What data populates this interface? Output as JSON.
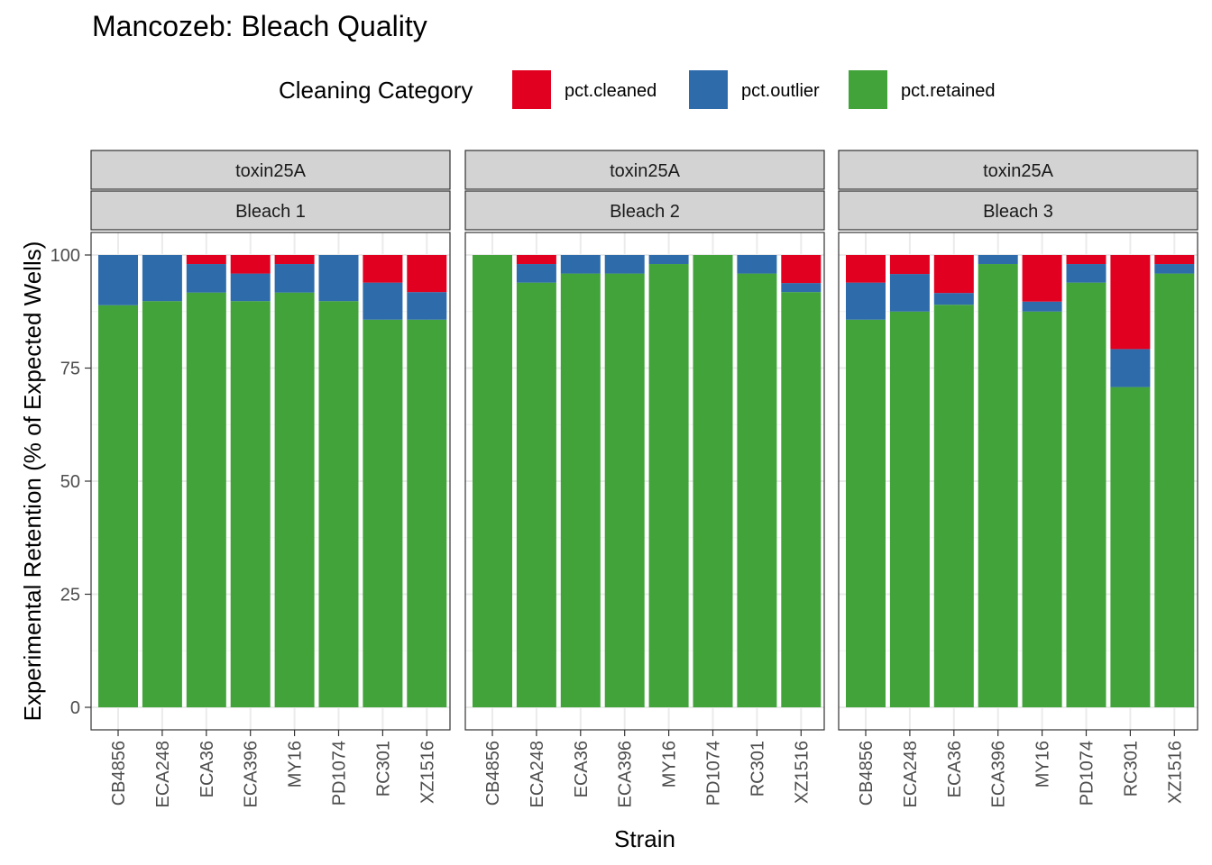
{
  "chart_data": {
    "type": "bar",
    "stacked": true,
    "title": "Mancozeb: Bleach Quality",
    "xlabel": "Strain",
    "ylabel": "Experimental Retention (% of Expected Wells)",
    "ylim": [
      0,
      100
    ],
    "yticks": [
      0,
      25,
      50,
      75,
      100
    ],
    "grid": true,
    "legend": {
      "title": "Cleaning Category",
      "position": "top",
      "entries": [
        {
          "key": "pct.cleaned",
          "color": "#e1001f"
        },
        {
          "key": "pct.outlier",
          "color": "#2e6bab"
        },
        {
          "key": "pct.retained",
          "color": "#41a33a"
        }
      ]
    },
    "categories": [
      "CB4856",
      "ECA248",
      "ECA36",
      "ECA396",
      "MY16",
      "PD1074",
      "RC301",
      "XZ1516"
    ],
    "panels": [
      {
        "strip_top": "toxin25A",
        "strip_bottom": "Bleach 1",
        "series": [
          {
            "name": "pct.retained",
            "values": [
              88.9,
              89.8,
              91.7,
              89.8,
              91.7,
              89.8,
              85.7,
              85.7
            ]
          },
          {
            "name": "pct.outlier",
            "values": [
              11.1,
              10.2,
              6.3,
              6.1,
              6.3,
              10.2,
              8.2,
              6.1
            ]
          },
          {
            "name": "pct.cleaned",
            "values": [
              0,
              0,
              2.0,
              4.1,
              2.0,
              0,
              6.1,
              8.2
            ]
          }
        ]
      },
      {
        "strip_top": "toxin25A",
        "strip_bottom": "Bleach 2",
        "series": [
          {
            "name": "pct.retained",
            "values": [
              100,
              93.9,
              95.9,
              95.9,
              98.0,
              100,
              95.9,
              91.8
            ]
          },
          {
            "name": "pct.outlier",
            "values": [
              0,
              4.1,
              4.1,
              4.1,
              2.0,
              0,
              4.1,
              2.0
            ]
          },
          {
            "name": "pct.cleaned",
            "values": [
              0,
              2.0,
              0,
              0,
              0,
              0,
              0,
              6.2
            ]
          }
        ]
      },
      {
        "strip_top": "toxin25A",
        "strip_bottom": "Bleach 3",
        "series": [
          {
            "name": "pct.retained",
            "values": [
              85.7,
              87.5,
              89.0,
              98.0,
              87.5,
              93.9,
              70.8,
              95.9
            ]
          },
          {
            "name": "pct.outlier",
            "values": [
              8.2,
              8.3,
              2.6,
              2.0,
              2.2,
              4.1,
              8.4,
              2.1
            ]
          },
          {
            "name": "pct.cleaned",
            "values": [
              6.1,
              4.2,
              8.4,
              0,
              10.3,
              2.0,
              20.8,
              2.0
            ]
          }
        ]
      }
    ]
  }
}
